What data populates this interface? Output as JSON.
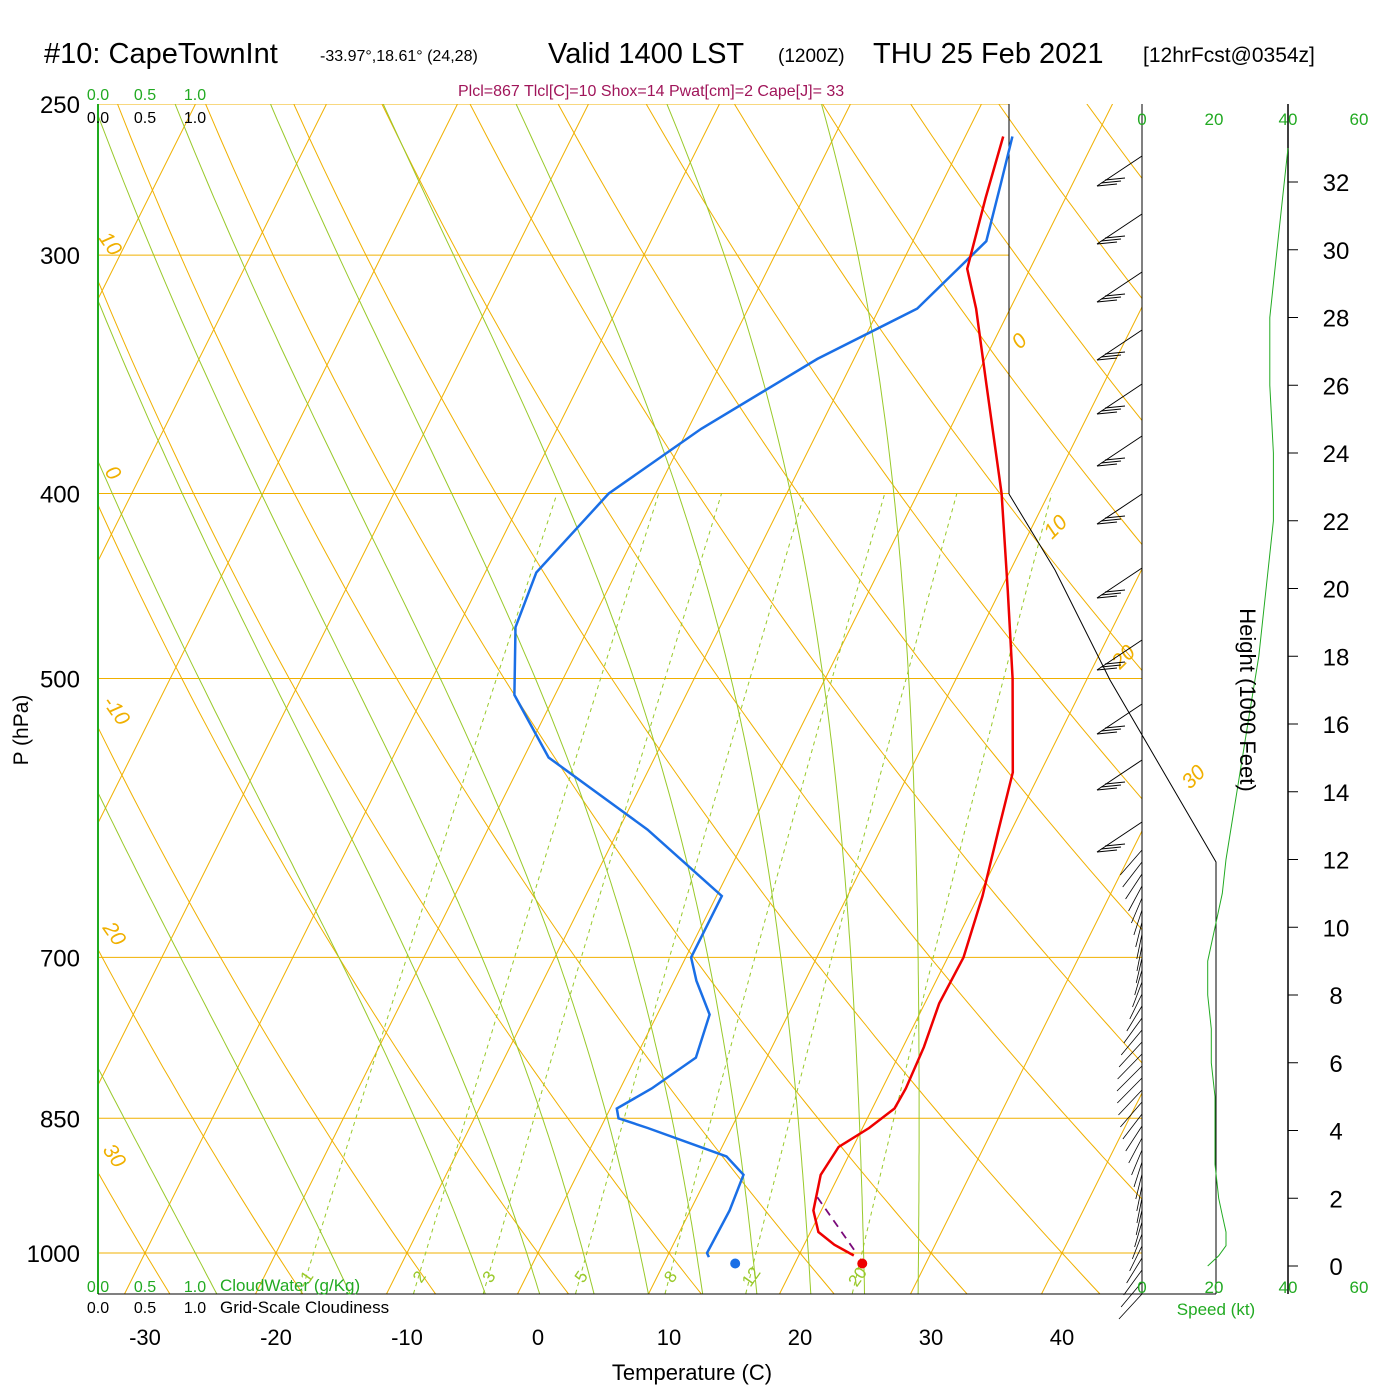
{
  "header": {
    "station": "#10: CapeTownInt",
    "coords": "-33.97°,18.61° (24,28)",
    "valid": "Valid 1400 LST",
    "zulu": "(1200Z)",
    "date": "THU 25 Feb 2021",
    "forecast": "[12hrFcst@0354z]",
    "stats": "Plcl=867 Tlcl[C]=10 Shox=14 Pwat[cm]=2 Cape[J]= 33"
  },
  "colors": {
    "temperature": "#ee0000",
    "dewpoint": "#1a6fe6",
    "isotherm": "#f0b000",
    "dry_adiabat": "#f0b000",
    "moist_adiabat": "#99c92a",
    "mixing_ratio": "#99c92a",
    "wind_speed": "#22aa22",
    "cloud_scale": "#22aa22",
    "parcel": "#7a0a7a"
  },
  "chart_data": {
    "type": "line",
    "xlabel": "Temperature (C)",
    "ylabel": "P (hPa)",
    "y2label": "Height (1000 Feet)",
    "x_ticks": [
      "-30",
      "-20",
      "-10",
      "0",
      "10",
      "20",
      "30",
      "40"
    ],
    "p_ticks": [
      "250",
      "300",
      "400",
      "500",
      "700",
      "850",
      "1000"
    ],
    "height_ticks": [
      "0",
      "2",
      "4",
      "6",
      "8",
      "10",
      "12",
      "14",
      "16",
      "18",
      "20",
      "22",
      "24",
      "26",
      "28",
      "30",
      "32"
    ],
    "p_range": [
      250,
      1000
    ],
    "x_range": [
      -34,
      36
    ],
    "skew": "isotherms tilted to the right with height",
    "isotherm_labels": [
      "30",
      "20",
      "-10",
      "0",
      "10",
      "0",
      "10",
      "20",
      "30"
    ],
    "mixing_ratio_labels": [
      "1",
      "2",
      "3",
      "5",
      "8",
      "12",
      "20"
    ],
    "series": [
      {
        "name": "",
        "role": "temperature",
        "p": [
          1003,
          990,
          975,
          950,
          910,
          880,
          860,
          840,
          820,
          780,
          740,
          700,
          650,
          600,
          560,
          500,
          450,
          400,
          350,
          320,
          305,
          280,
          260
        ],
        "t": [
          24.2,
          22.3,
          20.6,
          19.4,
          18.6,
          18.9,
          20.5,
          21.7,
          21.8,
          21.6,
          21.1,
          21.2,
          20.3,
          19.0,
          17.9,
          14.3,
          10.6,
          6.4,
          1.0,
          -2.6,
          -4.8,
          -6.1,
          -7.1
        ]
      },
      {
        "name": "",
        "role": "dewpoint",
        "p": [
          1005,
          1000,
          950,
          910,
          890,
          860,
          850,
          840,
          820,
          790,
          750,
          720,
          700,
          680,
          650,
          600,
          550,
          510,
          470,
          440,
          400,
          370,
          340,
          320,
          295,
          275,
          260
        ],
        "t": [
          13.2,
          12.9,
          13.0,
          12.7,
          10.7,
          3.6,
          1.0,
          0.5,
          2.4,
          4.6,
          4.0,
          1.7,
          0.4,
          0.4,
          0.4,
          -7.8,
          -18.1,
          -23.1,
          -25.6,
          -26.1,
          -23.6,
          -19.0,
          -12.8,
          -7.1,
          -4.4,
          -5.5,
          -6.4
        ]
      }
    ],
    "parcel_path": {
      "p": [
        935,
        1000
      ],
      "t": [
        19.2,
        24.3
      ]
    },
    "surface_temperature": {
      "p": 1003,
      "t": 25.0
    },
    "surface_dewpoint": {
      "p": 1003,
      "t": 15.3
    },
    "wind_speed_axis": {
      "label": "Speed (kt)",
      "ticks": [
        "0",
        "20",
        "40",
        "60"
      ]
    },
    "wind_speed_kt": {
      "height_kft": [
        0,
        0.3,
        0.6,
        1.0,
        1.5,
        2.0,
        3.0,
        4.0,
        5.0,
        6.0,
        7.0,
        8.0,
        9.0,
        10.0,
        11.0,
        12.0,
        14.0,
        16.0,
        18.0,
        20.0,
        22.0,
        24.0,
        26.0,
        28.0,
        30.0,
        32.0,
        33.0
      ],
      "speed": [
        18,
        21,
        23,
        23,
        22,
        21,
        20,
        20,
        20,
        19,
        19,
        18,
        18,
        20,
        22,
        23,
        26,
        29,
        32,
        34,
        36,
        36,
        35,
        35,
        37,
        39,
        40
      ]
    },
    "cloud_water_axis": {
      "label": "CloudWater (g/Kg)",
      "ticks": [
        "0.0",
        "0.5",
        "1.0"
      ]
    },
    "cloudiness_axis": {
      "label": "Grid-Scale Cloudiness",
      "ticks": [
        "0.0",
        "0.5",
        "1.0"
      ]
    }
  }
}
